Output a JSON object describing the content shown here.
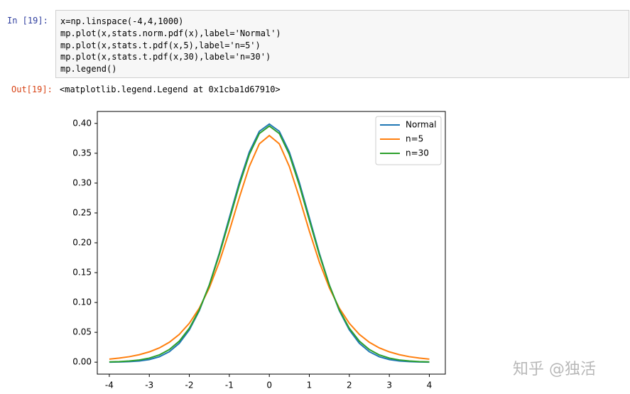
{
  "cell": {
    "prompt_in": "In  [19]:",
    "code": [
      "x=np.linspace(-4,4,1000)",
      "mp.plot(x,stats.norm.pdf(x),label='Normal')",
      "mp.plot(x,stats.t.pdf(x,5),label='n=5')",
      "mp.plot(x,stats.t.pdf(x,30),label='n=30')",
      "mp.legend()"
    ],
    "prompt_out": "Out[19]:",
    "output": "<matplotlib.legend.Legend at 0x1cba1d67910>"
  },
  "chart_data": {
    "type": "line",
    "x": [
      -4,
      -3.75,
      -3.5,
      -3.25,
      -3,
      -2.75,
      -2.5,
      -2.25,
      -2,
      -1.75,
      -1.5,
      -1.25,
      -1,
      -0.75,
      -0.5,
      -0.25,
      0,
      0.25,
      0.5,
      0.75,
      1,
      1.25,
      1.5,
      1.75,
      2,
      2.25,
      2.5,
      2.75,
      3,
      3.25,
      3.5,
      3.75,
      4
    ],
    "series": [
      {
        "name": "Normal",
        "color": "#1f77b4",
        "values": [
          0.0001,
          0.0004,
          0.0009,
          0.002,
          0.0044,
          0.0091,
          0.0175,
          0.0317,
          0.054,
          0.0863,
          0.1295,
          0.1826,
          0.242,
          0.3011,
          0.3521,
          0.3867,
          0.3989,
          0.3867,
          0.3521,
          0.3011,
          0.242,
          0.1826,
          0.1295,
          0.0863,
          0.054,
          0.0317,
          0.0175,
          0.0091,
          0.0044,
          0.002,
          0.0009,
          0.0004,
          0.0001
        ]
      },
      {
        "name": "n=5",
        "color": "#ff7f0e",
        "values": [
          0.0051,
          0.0069,
          0.0092,
          0.0126,
          0.0173,
          0.0239,
          0.0333,
          0.0466,
          0.0651,
          0.0905,
          0.1245,
          0.1679,
          0.2197,
          0.2757,
          0.3279,
          0.3657,
          0.3796,
          0.3657,
          0.3279,
          0.2757,
          0.2197,
          0.1679,
          0.1245,
          0.0905,
          0.0651,
          0.0466,
          0.0333,
          0.0239,
          0.0173,
          0.0126,
          0.0092,
          0.0069,
          0.0051
        ]
      },
      {
        "name": "n=30",
        "color": "#2ca02c",
        "values": [
          0.0005,
          0.001,
          0.002,
          0.0037,
          0.0068,
          0.0121,
          0.0211,
          0.0353,
          0.0568,
          0.0877,
          0.129,
          0.1801,
          0.238,
          0.2966,
          0.3479,
          0.383,
          0.3956,
          0.383,
          0.3479,
          0.2966,
          0.238,
          0.1801,
          0.129,
          0.0877,
          0.0568,
          0.0353,
          0.0211,
          0.0121,
          0.0068,
          0.0037,
          0.002,
          0.001,
          0.0005
        ]
      }
    ],
    "xlim": [
      -4.3,
      4.4
    ],
    "ylim": [
      -0.02,
      0.42
    ],
    "xticks": [
      -4,
      -3,
      -2,
      -1,
      0,
      1,
      2,
      3,
      4
    ],
    "yticks": [
      {
        "value": 0,
        "label": "0.00"
      },
      {
        "value": 0.05,
        "label": "0.05"
      },
      {
        "value": 0.1,
        "label": "0.10"
      },
      {
        "value": 0.15,
        "label": "0.15"
      },
      {
        "value": 0.2,
        "label": "0.20"
      },
      {
        "value": 0.25,
        "label": "0.25"
      },
      {
        "value": 0.3,
        "label": "0.30"
      },
      {
        "value": 0.35,
        "label": "0.35"
      },
      {
        "value": 0.4,
        "label": "0.40"
      }
    ],
    "legend": "upper right"
  },
  "watermark": "知乎 @独活"
}
